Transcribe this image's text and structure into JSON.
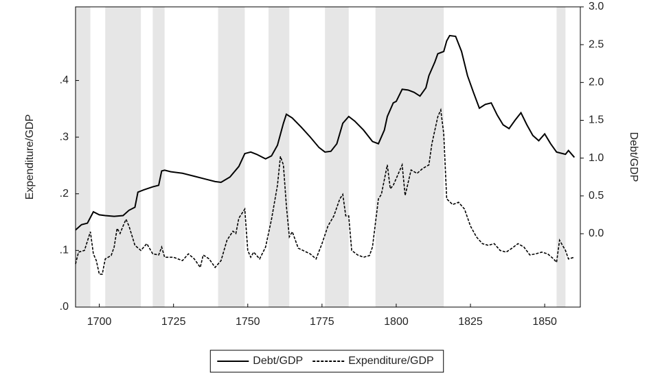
{
  "chart_data": {
    "type": "line",
    "xlim": [
      1692,
      1862
    ],
    "xticks": [
      1700,
      1725,
      1750,
      1775,
      1800,
      1825,
      1850
    ],
    "ylim": [
      0,
      0.53
    ],
    "yticks": [
      {
        "value": 0,
        "label": ".0"
      },
      {
        "value": 0.1,
        "label": ".1"
      },
      {
        "value": 0.2,
        "label": ".2"
      },
      {
        "value": 0.3,
        "label": ".3"
      },
      {
        "value": 0.4,
        "label": ".4"
      }
    ],
    "y2lim": [
      -0.97,
      3.0
    ],
    "y2ticks": [
      {
        "value": 0,
        "label": "0.0"
      },
      {
        "value": 0.5,
        "label": "0.5"
      },
      {
        "value": 1,
        "label": "1.0"
      },
      {
        "value": 1.5,
        "label": "1.5"
      },
      {
        "value": 2,
        "label": "2.0"
      },
      {
        "value": 2.5,
        "label": "2.5"
      },
      {
        "value": 3,
        "label": "3.0"
      }
    ],
    "ylabel": "Expenditure/GDP",
    "y2label": "Debt/GDP",
    "shaded_periods": [
      [
        1692,
        1697
      ],
      [
        1702,
        1714
      ],
      [
        1718,
        1722
      ],
      [
        1740,
        1749
      ],
      [
        1757,
        1764
      ],
      [
        1776,
        1784
      ],
      [
        1793,
        1816
      ],
      [
        1854,
        1857
      ]
    ],
    "shade_color": "#e6e6e6",
    "legend": "bottom",
    "series": [
      {
        "name": "Debt/GDP",
        "color": "#000000",
        "line_style": "solid",
        "axis": "y2",
        "x": [
          1692,
          1694,
          1696,
          1698,
          1700,
          1702,
          1705,
          1708,
          1710,
          1712,
          1713,
          1715,
          1718,
          1720,
          1721,
          1722,
          1724,
          1728,
          1732,
          1736,
          1739,
          1741,
          1744,
          1747,
          1749,
          1751,
          1753,
          1756,
          1758,
          1760,
          1762,
          1763,
          1765,
          1768,
          1771,
          1774,
          1776,
          1778,
          1780,
          1782,
          1784,
          1786,
          1789,
          1792,
          1794,
          1796,
          1797,
          1799,
          1800,
          1802,
          1804,
          1806,
          1808,
          1810,
          1811,
          1813,
          1814,
          1816,
          1817,
          1818,
          1820,
          1822,
          1824,
          1826,
          1828,
          1830,
          1832,
          1834,
          1836,
          1838,
          1840,
          1842,
          1844,
          1846,
          1848,
          1850,
          1852,
          1854,
          1857,
          1858,
          1860
        ],
        "values": [
          0.05,
          0.12,
          0.14,
          0.29,
          0.25,
          0.24,
          0.23,
          0.24,
          0.31,
          0.35,
          0.55,
          0.58,
          0.62,
          0.64,
          0.83,
          0.84,
          0.82,
          0.8,
          0.76,
          0.72,
          0.69,
          0.68,
          0.75,
          0.89,
          1.06,
          1.08,
          1.05,
          0.99,
          1.03,
          1.17,
          1.46,
          1.58,
          1.53,
          1.41,
          1.28,
          1.14,
          1.08,
          1.09,
          1.19,
          1.46,
          1.55,
          1.49,
          1.37,
          1.22,
          1.19,
          1.37,
          1.55,
          1.73,
          1.75,
          1.91,
          1.9,
          1.87,
          1.82,
          1.93,
          2.09,
          2.27,
          2.38,
          2.41,
          2.55,
          2.62,
          2.61,
          2.41,
          2.09,
          1.87,
          1.66,
          1.71,
          1.73,
          1.57,
          1.44,
          1.39,
          1.5,
          1.6,
          1.44,
          1.3,
          1.23,
          1.32,
          1.19,
          1.08,
          1.05,
          1.1,
          1.01
        ]
      },
      {
        "name": "Expenditure/GDP",
        "color": "#000000",
        "line_style": "dashed",
        "x": [
          1692,
          1693,
          1695,
          1697,
          1698,
          1699,
          1700,
          1701,
          1702,
          1704,
          1705,
          1706,
          1707,
          1708,
          1709,
          1710,
          1712,
          1714,
          1716,
          1718,
          1720,
          1721,
          1722,
          1725,
          1728,
          1730,
          1732,
          1734,
          1735,
          1737,
          1739,
          1741,
          1743,
          1745,
          1746,
          1747,
          1749,
          1750,
          1751,
          1752,
          1754,
          1756,
          1758,
          1760,
          1761,
          1762,
          1763,
          1764,
          1765,
          1767,
          1769,
          1771,
          1773,
          1775,
          1777,
          1779,
          1781,
          1782,
          1783,
          1784,
          1785,
          1787,
          1789,
          1791,
          1792,
          1794,
          1795,
          1797,
          1798,
          1799,
          1801,
          1802,
          1803,
          1805,
          1807,
          1809,
          1811,
          1812,
          1814,
          1815,
          1816,
          1817,
          1819,
          1821,
          1823,
          1825,
          1827,
          1829,
          1831,
          1833,
          1835,
          1837,
          1839,
          1841,
          1843,
          1845,
          1847,
          1849,
          1851,
          1853,
          1854,
          1855,
          1857,
          1858,
          1860
        ],
        "values": [
          0.076,
          0.097,
          0.1,
          0.133,
          0.094,
          0.082,
          0.058,
          0.058,
          0.085,
          0.091,
          0.106,
          0.139,
          0.13,
          0.143,
          0.155,
          0.143,
          0.109,
          0.1,
          0.112,
          0.094,
          0.092,
          0.106,
          0.088,
          0.088,
          0.082,
          0.094,
          0.085,
          0.07,
          0.092,
          0.085,
          0.07,
          0.082,
          0.118,
          0.134,
          0.13,
          0.157,
          0.173,
          0.1,
          0.088,
          0.097,
          0.085,
          0.106,
          0.155,
          0.215,
          0.266,
          0.251,
          0.179,
          0.124,
          0.133,
          0.104,
          0.099,
          0.094,
          0.085,
          0.112,
          0.143,
          0.161,
          0.191,
          0.199,
          0.161,
          0.161,
          0.1,
          0.092,
          0.088,
          0.091,
          0.106,
          0.191,
          0.199,
          0.251,
          0.209,
          0.215,
          0.239,
          0.251,
          0.197,
          0.242,
          0.236,
          0.245,
          0.251,
          0.288,
          0.336,
          0.348,
          0.306,
          0.191,
          0.181,
          0.185,
          0.173,
          0.143,
          0.124,
          0.112,
          0.109,
          0.112,
          0.1,
          0.097,
          0.104,
          0.112,
          0.106,
          0.092,
          0.094,
          0.097,
          0.094,
          0.085,
          0.079,
          0.118,
          0.1,
          0.085,
          0.088
        ]
      }
    ]
  }
}
